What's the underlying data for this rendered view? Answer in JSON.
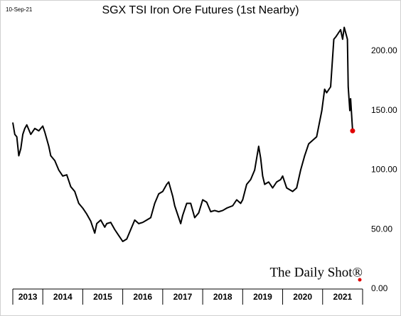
{
  "chart_data": {
    "type": "line",
    "title": "SGX TSI Iron Ore Futures (1st Nearby)",
    "date_label": "10-Sep-21",
    "watermark": "The Daily Shot®",
    "x": [
      2013.25,
      2013.3,
      2013.35,
      2013.4,
      2013.45,
      2013.5,
      2013.55,
      2013.6,
      2013.7,
      2013.8,
      2013.9,
      2014.0,
      2014.05,
      2014.15,
      2014.2,
      2014.3,
      2014.4,
      2014.5,
      2014.6,
      2014.7,
      2014.8,
      2014.9,
      2015.0,
      2015.1,
      2015.2,
      2015.25,
      2015.3,
      2015.35,
      2015.45,
      2015.55,
      2015.6,
      2015.7,
      2015.8,
      2015.9,
      2016.0,
      2016.1,
      2016.2,
      2016.3,
      2016.4,
      2016.5,
      2016.6,
      2016.7,
      2016.8,
      2016.9,
      2017.0,
      2017.1,
      2017.15,
      2017.25,
      2017.3,
      2017.4,
      2017.45,
      2017.5,
      2017.6,
      2017.7,
      2017.8,
      2017.9,
      2018.0,
      2018.1,
      2018.2,
      2018.3,
      2018.4,
      2018.5,
      2018.6,
      2018.75,
      2018.85,
      2018.95,
      2019.0,
      2019.1,
      2019.2,
      2019.3,
      2019.4,
      2019.45,
      2019.5,
      2019.55,
      2019.65,
      2019.75,
      2019.85,
      2019.95,
      2020.0,
      2020.1,
      2020.25,
      2020.35,
      2020.45,
      2020.55,
      2020.65,
      2020.75,
      2020.85,
      2020.98,
      2021.05,
      2021.1,
      2021.2,
      2021.28,
      2021.33,
      2021.45,
      2021.5,
      2021.54,
      2021.58,
      2021.62,
      2021.64,
      2021.68,
      2021.7,
      2021.75
    ],
    "series": [
      {
        "name": "SGX TSI Iron Ore Futures",
        "color": "#000000",
        "values": [
          140,
          130,
          128,
          112,
          118,
          130,
          135,
          138,
          130,
          135,
          133,
          137,
          132,
          120,
          112,
          108,
          100,
          95,
          96,
          86,
          82,
          72,
          68,
          63,
          57,
          52,
          47,
          55,
          58,
          52,
          55,
          56,
          50,
          45,
          40,
          42,
          50,
          58,
          55,
          56,
          58,
          60,
          72,
          80,
          82,
          88,
          90,
          78,
          70,
          60,
          55,
          62,
          72,
          72,
          60,
          64,
          75,
          73,
          65,
          66,
          65,
          66,
          68,
          70,
          75,
          72,
          75,
          88,
          92,
          100,
          120,
          110,
          95,
          88,
          90,
          85,
          90,
          92,
          95,
          85,
          82,
          85,
          100,
          112,
          122,
          125,
          128,
          150,
          168,
          165,
          170,
          210,
          212,
          218,
          210,
          220,
          215,
          210,
          170,
          150,
          160,
          133
        ]
      }
    ],
    "last_point_color": "#e00000",
    "xlim": [
      2013.25,
      2022.0
    ],
    "xticks": [
      {
        "value": 2013,
        "label": "2013"
      },
      {
        "value": 2014,
        "label": "2014"
      },
      {
        "value": 2015,
        "label": "2015"
      },
      {
        "value": 2016,
        "label": "2016"
      },
      {
        "value": 2017,
        "label": "2017"
      },
      {
        "value": 2018,
        "label": "2018"
      },
      {
        "value": 2019,
        "label": "2019"
      },
      {
        "value": 2020,
        "label": "2020"
      },
      {
        "value": 2021,
        "label": "2021"
      }
    ],
    "ylim": [
      0,
      220
    ],
    "yticks": [
      {
        "value": 0,
        "label": "0.00"
      },
      {
        "value": 50,
        "label": "50.00"
      },
      {
        "value": 100,
        "label": "100.00"
      },
      {
        "value": 150,
        "label": "150.00"
      },
      {
        "value": 200,
        "label": "200.00"
      }
    ]
  }
}
